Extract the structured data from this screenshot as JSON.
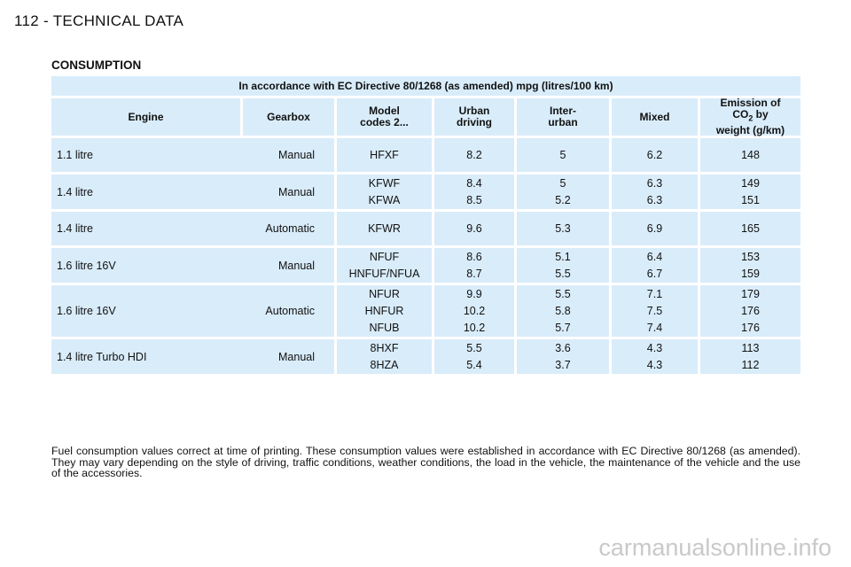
{
  "page": {
    "header": "112 - TECHNICAL DATA"
  },
  "section": {
    "title": "CONSUMPTION"
  },
  "table": {
    "banner": "In accordance with EC Directive 80/1268 (as amended) mpg (litres/100 km)",
    "headers": {
      "engine": "Engine",
      "gearbox": "Gearbox",
      "model_line1": "Model",
      "model_line2": "codes 2...",
      "urban_line1": "Urban",
      "urban_line2": "driving",
      "inter_line1": "Inter-",
      "inter_line2": "urban",
      "mixed": "Mixed",
      "emission_line1": "Emission of",
      "emission_co": "CO",
      "emission_sub": "2",
      "emission_by": " by",
      "emission_line3": "weight (g/km)"
    },
    "groups": [
      {
        "engine": "1.1 litre",
        "gearbox": "Manual",
        "rows": [
          {
            "model": "HFXF",
            "urban": "8.2",
            "inter": "5",
            "mixed": "6.2",
            "co2": "148"
          }
        ]
      },
      {
        "engine": "1.4 litre",
        "gearbox": "Manual",
        "rows": [
          {
            "model": "KFWF",
            "urban": "8.4",
            "inter": "5",
            "mixed": "6.3",
            "co2": "149"
          },
          {
            "model": "KFWA",
            "urban": "8.5",
            "inter": "5.2",
            "mixed": "6.3",
            "co2": "151"
          }
        ]
      },
      {
        "engine": "1.4 litre",
        "gearbox": "Automatic",
        "rows": [
          {
            "model": "KFWR",
            "urban": "9.6",
            "inter": "5.3",
            "mixed": "6.9",
            "co2": "165"
          }
        ]
      },
      {
        "engine": "1.6 litre 16V",
        "gearbox": "Manual",
        "rows": [
          {
            "model": "NFUF",
            "urban": "8.6",
            "inter": "5.1",
            "mixed": "6.4",
            "co2": "153"
          },
          {
            "model": "HNFUF/NFUA",
            "urban": "8.7",
            "inter": "5.5",
            "mixed": "6.7",
            "co2": "159"
          }
        ]
      },
      {
        "engine": "1.6 litre 16V",
        "gearbox": "Automatic",
        "rows": [
          {
            "model": "NFUR",
            "urban": "9.9",
            "inter": "5.5",
            "mixed": "7.1",
            "co2": "179"
          },
          {
            "model": "HNFUR",
            "urban": "10.2",
            "inter": "5.8",
            "mixed": "7.5",
            "co2": "176"
          },
          {
            "model": "NFUB",
            "urban": "10.2",
            "inter": "5.7",
            "mixed": "7.4",
            "co2": "176"
          }
        ]
      },
      {
        "engine": "1.4 litre Turbo HDI",
        "gearbox": "Manual",
        "rows": [
          {
            "model": "8HXF",
            "urban": "5.5",
            "inter": "3.6",
            "mixed": "4.3",
            "co2": "113"
          },
          {
            "model": "8HZA",
            "urban": "5.4",
            "inter": "3.7",
            "mixed": "4.3",
            "co2": "112"
          }
        ]
      }
    ]
  },
  "note": "Fuel consumption values correct at time of printing. These consumption values were established in accordance with EC Directive 80/1268 (as amended). They may vary depending on the style of driving, traffic conditions, weather conditions, the load in the vehicle, the maintenance of the vehicle and the use of the accessories.",
  "watermark": "carmanualsonline.info"
}
